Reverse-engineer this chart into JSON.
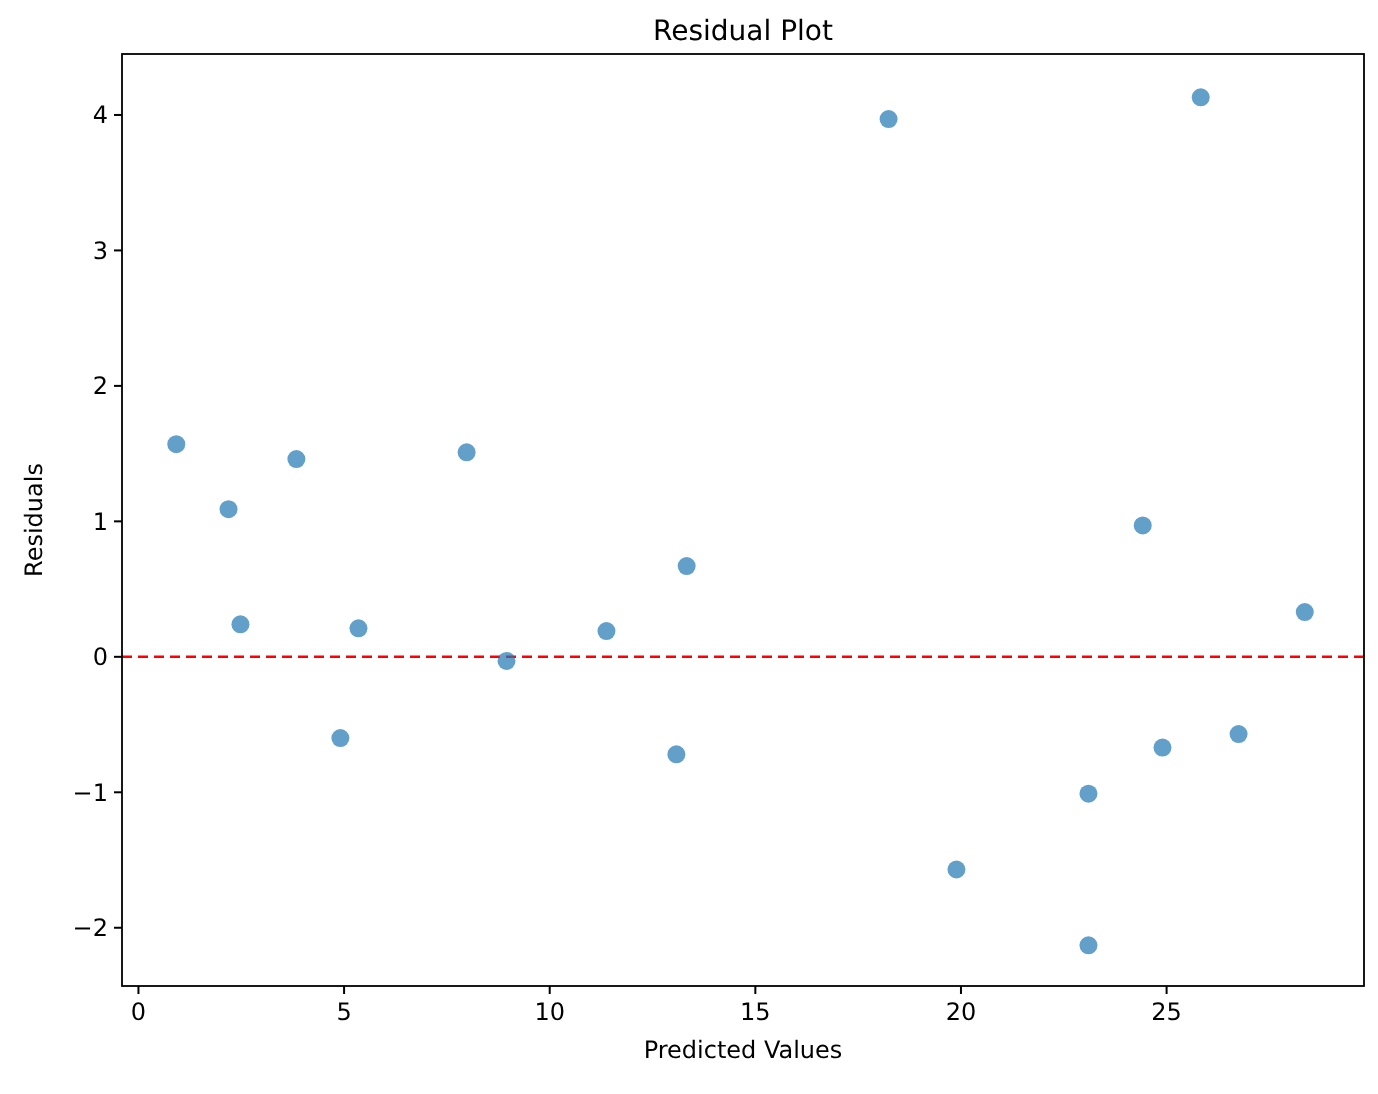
{
  "chart_data": {
    "type": "scatter",
    "title": "Residual Plot",
    "xlabel": "Predicted Values",
    "ylabel": "Residuals",
    "x": [
      0.92,
      2.19,
      2.48,
      3.84,
      4.91,
      5.35,
      7.98,
      8.95,
      11.38,
      13.08,
      13.33,
      18.24,
      19.89,
      23.1,
      23.1,
      24.42,
      24.9,
      25.83,
      26.75,
      28.36
    ],
    "series": [
      {
        "color": "#1f77b4",
        "values": [
          1.57,
          1.09,
          0.24,
          1.46,
          -0.6,
          0.21,
          1.51,
          -0.03,
          0.19,
          -0.72,
          0.67,
          3.97,
          -1.57,
          -1.01,
          -2.13,
          0.97,
          -0.67,
          4.13,
          -0.57,
          0.33
        ]
      }
    ],
    "xlim": [
      -0.4,
      29.8
    ],
    "xticks": [
      0,
      5,
      10,
      15,
      20,
      25
    ],
    "ylim": [
      -2.43,
      4.45
    ],
    "yticks": [
      {
        "value": -2,
        "label": "−2"
      },
      {
        "value": -1,
        "label": "−1"
      },
      0,
      1,
      2,
      3,
      4
    ],
    "ref_lines": [
      {
        "axis": "y",
        "value": 0,
        "color": "#ff0000",
        "line_style": "dashed"
      }
    ],
    "marker": "circle",
    "grid": false
  }
}
